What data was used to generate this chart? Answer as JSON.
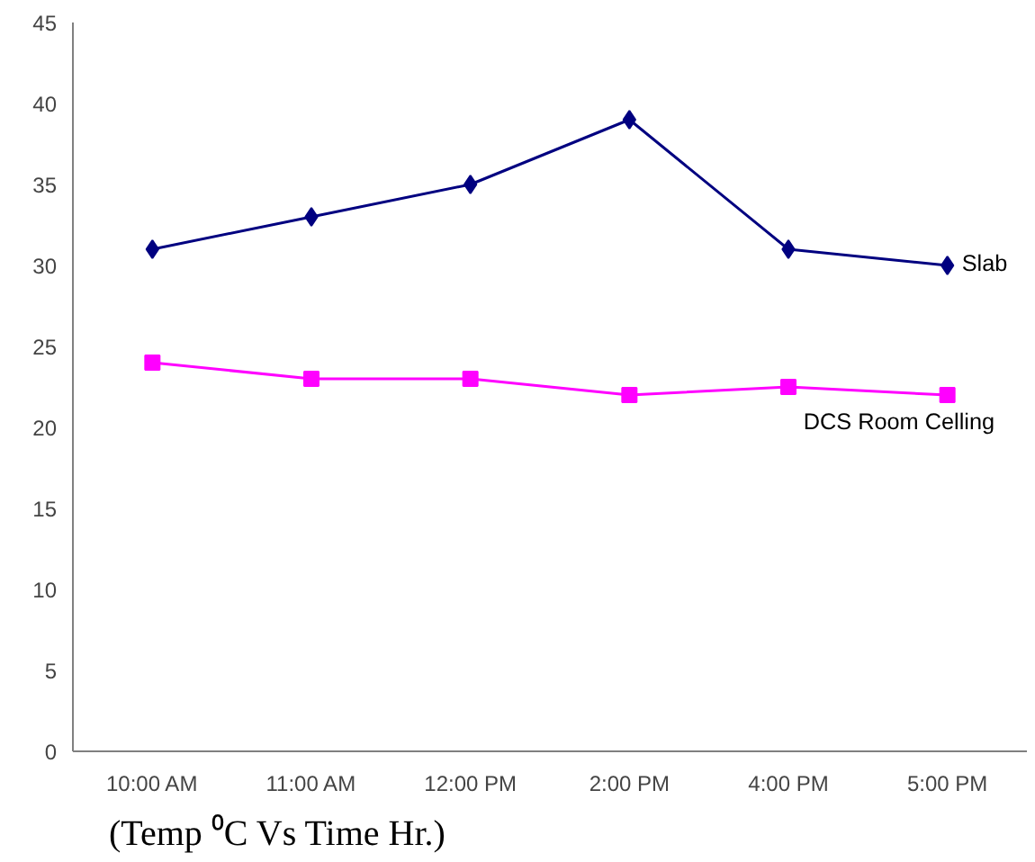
{
  "chart_data": {
    "type": "line",
    "categories": [
      "10:00 AM",
      "11:00 AM",
      "12:00 PM",
      "2:00 PM",
      "4:00 PM",
      "5:00 PM"
    ],
    "series": [
      {
        "name": "Slab",
        "color": "#000080",
        "marker": "diamond",
        "values": [
          31,
          33,
          35,
          39,
          31,
          30
        ]
      },
      {
        "name": "DCS Room Celling",
        "color": "#ff00ff",
        "marker": "square",
        "values": [
          24,
          23,
          23,
          22,
          22.5,
          22
        ]
      }
    ],
    "ylim": [
      0,
      45
    ],
    "yticks": [
      0,
      5,
      10,
      15,
      20,
      25,
      30,
      35,
      40,
      45
    ],
    "grid": false,
    "annotations": [
      "(Temp ⁰C Vs Time Hr.)"
    ]
  }
}
